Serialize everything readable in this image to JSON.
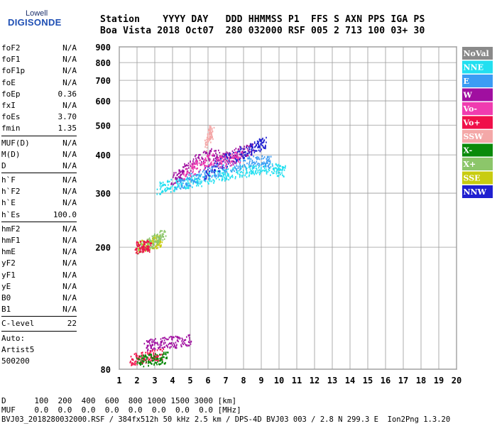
{
  "logo": {
    "top": "Lowell",
    "main": "DIGISONDE"
  },
  "header": {
    "line1": "Station    YYYY DAY   DDD HHMMSS P1  FFS S AXN PPS IGA PS",
    "line2": "Boa Vista 2018 Oct07  280 032000 RSF 005 2 713 100 03+ 30"
  },
  "params_group1": [
    {
      "label": "foF2",
      "value": "N/A"
    },
    {
      "label": "foF1",
      "value": "N/A"
    },
    {
      "label": "foF1p",
      "value": "N/A"
    },
    {
      "label": "foE",
      "value": "N/A"
    },
    {
      "label": "foEp",
      "value": "0.36"
    },
    {
      "label": "fxI",
      "value": "N/A"
    },
    {
      "label": "foEs",
      "value": "3.70"
    },
    {
      "label": "fmin",
      "value": "1.35"
    }
  ],
  "params_group2": [
    {
      "label": "MUF(D)",
      "value": "N/A"
    },
    {
      "label": "M(D)",
      "value": "N/A"
    },
    {
      "label": "D",
      "value": "N/A"
    }
  ],
  "params_group3": [
    {
      "label": "h`F",
      "value": "N/A"
    },
    {
      "label": "h`F2",
      "value": "N/A"
    },
    {
      "label": "h`E",
      "value": "N/A"
    },
    {
      "label": "h`Es",
      "value": "100.0"
    }
  ],
  "params_group4": [
    {
      "label": "hmF2",
      "value": "N/A"
    },
    {
      "label": "hmF1",
      "value": "N/A"
    },
    {
      "label": "hmE",
      "value": "N/A"
    },
    {
      "label": "yF2",
      "value": "N/A"
    },
    {
      "label": "yF1",
      "value": "N/A"
    },
    {
      "label": "yE",
      "value": "N/A"
    },
    {
      "label": "B0",
      "value": "N/A"
    },
    {
      "label": "B1",
      "value": "N/A"
    }
  ],
  "clevel": {
    "label": "C-level",
    "value": "22"
  },
  "autoscaling": {
    "line1": "Auto:",
    "line2": "Artist5",
    "line3": "500200"
  },
  "bottom": {
    "d_row": "D      100  200  400  600  800 1000 1500 3000 [km]",
    "muf_row": "MUF    0.0  0.0  0.0  0.0  0.0  0.0  0.0  0.0 [MHz]",
    "footer": "BVJ03_2018280032000.RSF / 384fx512h 50 kHz 2.5 km / DPS-4D BVJ03 003 / 2.8 N 299.3 E  Ion2Png 1.3.20"
  },
  "chart_data": {
    "type": "scatter",
    "xlim": [
      1,
      20
    ],
    "ylim": [
      80,
      900
    ],
    "x_ticks": [
      1,
      2,
      3,
      4,
      5,
      6,
      7,
      8,
      9,
      10,
      11,
      12,
      13,
      14,
      15,
      16,
      17,
      18,
      19,
      20
    ],
    "y_ticks": [
      80,
      200,
      300,
      400,
      500,
      600,
      700,
      800,
      900
    ],
    "y_scale": "log",
    "grid": true,
    "legend_position": "right",
    "legend": [
      {
        "name": "NoVal",
        "color": "#8a8a8a"
      },
      {
        "name": "NNE",
        "color": "#22dff0"
      },
      {
        "name": "E",
        "color": "#3b9cf4"
      },
      {
        "name": "W",
        "color": "#a00fa0"
      },
      {
        "name": "Vo-",
        "color": "#f03cb0"
      },
      {
        "name": "Vo+",
        "color": "#f0104a"
      },
      {
        "name": "SSW",
        "color": "#f4a8a8"
      },
      {
        "name": "X-",
        "color": "#0a8a0a"
      },
      {
        "name": "X+",
        "color": "#8cc66a"
      },
      {
        "name": "SSE",
        "color": "#c8cc10"
      },
      {
        "name": "NNW",
        "color": "#2020d0"
      }
    ],
    "series": [
      {
        "color": "#22dff0",
        "x_range": [
          3.0,
          10.3
        ],
        "y_range": [
          305,
          385
        ],
        "points": [
          [
            3.2,
            312
          ],
          [
            3.8,
            318
          ],
          [
            4.5,
            325
          ],
          [
            5.2,
            330
          ],
          [
            6.0,
            337
          ],
          [
            6.8,
            345
          ],
          [
            7.5,
            352
          ],
          [
            8.3,
            358
          ],
          [
            9.0,
            362
          ],
          [
            9.8,
            360
          ],
          [
            10.3,
            355
          ]
        ]
      },
      {
        "color": "#3b9cf4",
        "x_range": [
          4.0,
          9.6
        ],
        "y_range": [
          315,
          395
        ],
        "points": [
          [
            4.2,
            320
          ],
          [
            5.0,
            335
          ],
          [
            6.0,
            350
          ],
          [
            7.0,
            365
          ],
          [
            8.0,
            378
          ],
          [
            9.0,
            385
          ],
          [
            9.5,
            380
          ]
        ]
      },
      {
        "color": "#a00fa0",
        "x_range": [
          3.8,
          9.0
        ],
        "y_range": [
          320,
          425
        ],
        "points": [
          [
            4.0,
            330
          ],
          [
            4.6,
            360
          ],
          [
            5.4,
            385
          ],
          [
            6.2,
            405
          ],
          [
            7.0,
            395
          ],
          [
            7.8,
            410
          ],
          [
            8.6,
            420
          ]
        ]
      },
      {
        "color": "#2020d0",
        "x_range": [
          5.5,
          9.4
        ],
        "y_range": [
          330,
          440
        ],
        "points": [
          [
            5.8,
            350
          ],
          [
            6.6,
            375
          ],
          [
            7.4,
            395
          ],
          [
            8.2,
            415
          ],
          [
            8.8,
            430
          ],
          [
            9.2,
            440
          ]
        ]
      },
      {
        "color": "#f03cb0",
        "x_range": [
          4.2,
          8.0
        ],
        "y_range": [
          330,
          410
        ],
        "points": [
          [
            4.6,
            345
          ],
          [
            5.4,
            370
          ],
          [
            6.2,
            390
          ],
          [
            7.0,
            380
          ],
          [
            7.8,
            400
          ]
        ]
      },
      {
        "color": "#f4a8a8",
        "x_range": [
          5.5,
          6.5
        ],
        "y_range": [
          400,
          490
        ],
        "points": [
          [
            5.9,
            430
          ],
          [
            6.1,
            470
          ],
          [
            6.2,
            485
          ]
        ]
      },
      {
        "color": "#a00fa0",
        "x_range": [
          2.2,
          5.2
        ],
        "y_range": [
          92,
          102
        ],
        "points": [
          [
            2.4,
            95
          ],
          [
            3.0,
            97
          ],
          [
            3.6,
            98
          ],
          [
            4.2,
            99
          ],
          [
            5.0,
            100
          ]
        ]
      },
      {
        "color": "#f0104a",
        "x_range": [
          1.5,
          3.8
        ],
        "y_range": [
          84,
          92
        ],
        "points": [
          [
            1.6,
            86
          ],
          [
            2.2,
            88
          ],
          [
            2.8,
            89
          ],
          [
            3.4,
            90
          ]
        ]
      },
      {
        "color": "#0a8a0a",
        "x_range": [
          1.8,
          3.8
        ],
        "y_range": [
          83,
          90
        ],
        "points": [
          [
            2.0,
            85
          ],
          [
            2.6,
            86
          ],
          [
            3.2,
            87
          ],
          [
            3.7,
            88
          ]
        ]
      },
      {
        "color": "#c8cc10",
        "x_range": [
          1.8,
          3.4
        ],
        "y_range": [
          200,
          215
        ],
        "points": [
          [
            2.0,
            202
          ],
          [
            2.5,
            205
          ],
          [
            3.0,
            208
          ],
          [
            3.3,
            212
          ]
        ]
      },
      {
        "color": "#8cc66a",
        "x_range": [
          1.8,
          3.6
        ],
        "y_range": [
          196,
          225
        ],
        "points": [
          [
            2.0,
            200
          ],
          [
            2.6,
            205
          ],
          [
            3.1,
            215
          ],
          [
            3.5,
            222
          ]
        ]
      },
      {
        "color": "#f0104a",
        "x_range": [
          1.8,
          2.8
        ],
        "y_range": [
          198,
          205
        ],
        "points": [
          [
            1.9,
            200
          ],
          [
            2.4,
            202
          ],
          [
            2.7,
            203
          ]
        ]
      }
    ]
  }
}
